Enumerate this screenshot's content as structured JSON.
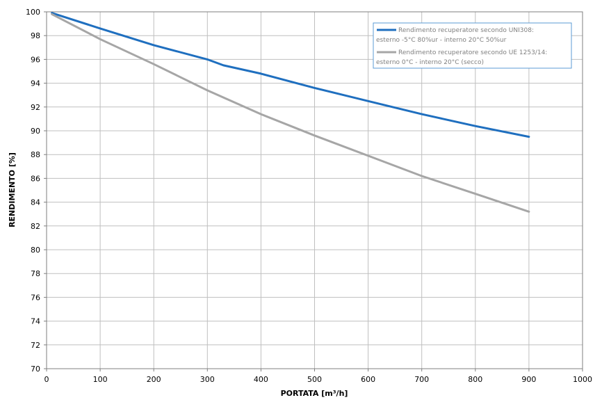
{
  "chart_data": {
    "type": "line",
    "xlabel": "PORTATA [m³/h]",
    "ylabel": "RENDIMENTO [%]",
    "xlim": [
      0,
      1000
    ],
    "ylim": [
      70,
      100
    ],
    "xticks": [
      0,
      100,
      200,
      300,
      400,
      500,
      600,
      700,
      800,
      900,
      1000
    ],
    "yticks": [
      70,
      72,
      74,
      76,
      78,
      80,
      82,
      84,
      86,
      88,
      90,
      92,
      94,
      96,
      98,
      100
    ],
    "grid": true,
    "legend_position": "top-right",
    "series": [
      {
        "name": "Rendimento recuperatore secondo UNI308: esterno -5°C 80%ur - interno 20°C 50%ur",
        "legend_lines": [
          "Rendimento recuperatore secondo UNI308:",
          "esterno -5°C 80%ur - interno 20°C 50%ur"
        ],
        "color": "#1f6fbf",
        "x": [
          10,
          100,
          200,
          300,
          330,
          400,
          500,
          600,
          700,
          730,
          800,
          900
        ],
        "y": [
          99.9,
          98.6,
          97.2,
          96.0,
          95.5,
          94.8,
          93.6,
          92.5,
          91.4,
          91.1,
          90.4,
          89.5
        ]
      },
      {
        "name": "Rendimento recuperatore secondo UE 1253/14: esterno 0°C - interno 20°C (secco)",
        "legend_lines": [
          "Rendimento recuperatore secondo UE 1253/14:",
          "esterno 0°C - interno 20°C (secco)"
        ],
        "color": "#a6a6a6",
        "x": [
          10,
          100,
          200,
          300,
          400,
          500,
          600,
          700,
          800,
          900
        ],
        "y": [
          99.8,
          97.7,
          95.6,
          93.4,
          91.4,
          89.6,
          87.9,
          86.2,
          84.7,
          83.2
        ]
      }
    ]
  }
}
